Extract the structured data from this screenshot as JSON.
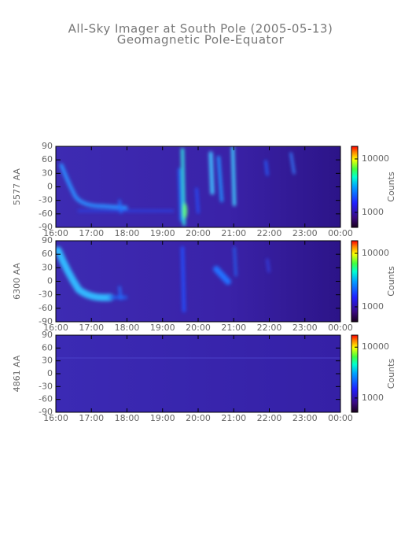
{
  "title": "All-Sky Imager at South Pole (2005-05-13)",
  "subtitle": "Geomagnetic Pole-Equator",
  "chart_data": [
    {
      "type": "heatmap",
      "ylabel": "5577 AA",
      "xlim": [
        16,
        24
      ],
      "xticks": [
        {
          "value": 16,
          "label": "16:00"
        },
        {
          "value": 17,
          "label": "17:00"
        },
        {
          "value": 18,
          "label": "18:00"
        },
        {
          "value": 19,
          "label": "19:00"
        },
        {
          "value": 20,
          "label": "20:00"
        },
        {
          "value": 21,
          "label": "21:00"
        },
        {
          "value": 22,
          "label": "22:00"
        },
        {
          "value": 23,
          "label": "23:00"
        },
        {
          "value": 24,
          "label": "00:00"
        }
      ],
      "ylim": [
        -90,
        90
      ],
      "yticks": [
        -90,
        -60,
        -30,
        0,
        30,
        60,
        90
      ],
      "colorbar": {
        "label": "Counts",
        "log": true,
        "lim": [
          525,
          17200
        ],
        "ticks": [
          1000,
          10000
        ]
      }
    },
    {
      "type": "heatmap",
      "ylabel": "6300 AA",
      "xlim": [
        16,
        24
      ],
      "xticks": [
        {
          "value": 16,
          "label": "16:00"
        },
        {
          "value": 17,
          "label": "17:00"
        },
        {
          "value": 18,
          "label": "18:00"
        },
        {
          "value": 19,
          "label": "19:00"
        },
        {
          "value": 20,
          "label": "20:00"
        },
        {
          "value": 21,
          "label": "21:00"
        },
        {
          "value": 22,
          "label": "22:00"
        },
        {
          "value": 23,
          "label": "23:00"
        },
        {
          "value": 24,
          "label": "00:00"
        }
      ],
      "ylim": [
        -90,
        90
      ],
      "yticks": [
        -90,
        -60,
        -30,
        0,
        30,
        60,
        90
      ],
      "colorbar": {
        "label": "Counts",
        "log": true,
        "lim": [
          525,
          17200
        ],
        "ticks": [
          1000,
          10000
        ]
      }
    },
    {
      "type": "heatmap",
      "ylabel": "4861 AA",
      "xlim": [
        16,
        24
      ],
      "xticks": [
        {
          "value": 16,
          "label": "16:00"
        },
        {
          "value": 17,
          "label": "17:00"
        },
        {
          "value": 18,
          "label": "18:00"
        },
        {
          "value": 19,
          "label": "19:00"
        },
        {
          "value": 20,
          "label": "20:00"
        },
        {
          "value": 21,
          "label": "21:00"
        },
        {
          "value": 22,
          "label": "22:00"
        },
        {
          "value": 23,
          "label": "23:00"
        },
        {
          "value": 24,
          "label": "00:00"
        }
      ],
      "ylim": [
        -90,
        90
      ],
      "yticks": [
        -90,
        -60,
        -30,
        0,
        30,
        60,
        90
      ],
      "colorbar": {
        "label": "Counts",
        "log": true,
        "lim": [
          525,
          17200
        ],
        "ticks": [
          1000,
          10000
        ]
      }
    }
  ]
}
